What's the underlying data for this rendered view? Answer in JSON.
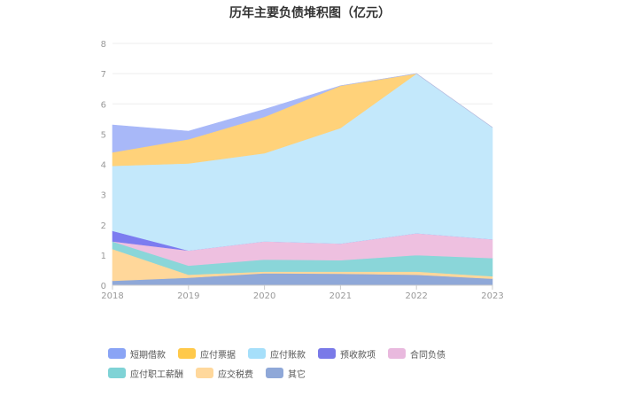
{
  "chart_data": {
    "type": "area",
    "stacked": true,
    "title": "历年主要负债堆积图（亿元）",
    "categories": [
      "2018",
      "2019",
      "2020",
      "2021",
      "2022",
      "2023"
    ],
    "ylim": [
      0,
      8
    ],
    "yticks": [
      "0",
      "1",
      "2",
      "3",
      "4",
      "5",
      "6",
      "7",
      "8"
    ],
    "grid": true,
    "legend_position": "bottom",
    "series": [
      {
        "name": "其它",
        "color": "#8fa8d8",
        "values": [
          0.15,
          0.25,
          0.4,
          0.38,
          0.35,
          0.22
        ]
      },
      {
        "name": "应交税费",
        "color": "#ffd79a",
        "values": [
          1.05,
          0.1,
          0.05,
          0.07,
          0.1,
          0.08
        ]
      },
      {
        "name": "应付职工薪酬",
        "color": "#8ad6d9",
        "values": [
          0.25,
          0.3,
          0.4,
          0.38,
          0.55,
          0.6
        ]
      },
      {
        "name": "合同负债",
        "color": "#eec0e0",
        "values": [
          0.0,
          0.5,
          0.6,
          0.55,
          0.72,
          0.62
        ]
      },
      {
        "name": "预收款项",
        "color": "#7c7cf0",
        "values": [
          0.35,
          0.0,
          0.0,
          0.0,
          0.0,
          0.0
        ]
      },
      {
        "name": "应付账款",
        "color": "#c3e8fb",
        "values": [
          2.15,
          2.88,
          2.92,
          3.82,
          5.28,
          3.7
        ]
      },
      {
        "name": "应付票据",
        "color": "#ffd27a",
        "values": [
          0.45,
          0.8,
          1.2,
          1.4,
          0.0,
          0.0
        ]
      },
      {
        "name": "短期借款",
        "color": "#a8b8f8",
        "values": [
          0.9,
          0.27,
          0.25,
          0.0,
          0.0,
          0.0
        ]
      }
    ],
    "legend": [
      {
        "name": "短期借款",
        "color": "#8aa4f5"
      },
      {
        "name": "应付票据",
        "color": "#ffc94a"
      },
      {
        "name": "应付账款",
        "color": "#a6dffa"
      },
      {
        "name": "预收款项",
        "color": "#7a7ae8"
      },
      {
        "name": "合同负债",
        "color": "#e9b9de"
      },
      {
        "name": "应付职工薪酬",
        "color": "#7fd3d6"
      },
      {
        "name": "应交税费",
        "color": "#ffd89c"
      },
      {
        "name": "其它",
        "color": "#8fa8d8"
      }
    ]
  }
}
